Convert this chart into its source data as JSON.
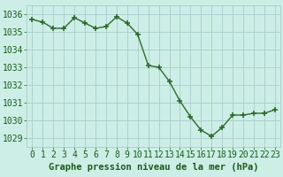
{
  "x": [
    0,
    1,
    2,
    3,
    4,
    5,
    6,
    7,
    8,
    9,
    10,
    11,
    12,
    13,
    14,
    15,
    16,
    17,
    18,
    19,
    20,
    21,
    22,
    23
  ],
  "y": [
    1035.7,
    1035.55,
    1035.2,
    1035.2,
    1035.8,
    1035.5,
    1035.2,
    1035.3,
    1035.85,
    1035.5,
    1034.85,
    1033.1,
    1033.0,
    1032.2,
    1031.1,
    1030.2,
    1029.45,
    1029.1,
    1029.6,
    1030.3,
    1030.3,
    1030.4,
    1030.4,
    1030.6
  ],
  "line_color": "#2d6a2d",
  "marker_color": "#2d6a2d",
  "bg_color": "#cceee6",
  "grid_color": "#aacccc",
  "xlabel": "Graphe pression niveau de la mer (hPa)",
  "xlabel_color": "#1a5c1a",
  "ylabel_ticks": [
    1029,
    1030,
    1031,
    1032,
    1033,
    1034,
    1035,
    1036
  ],
  "xlim": [
    -0.5,
    23.5
  ],
  "ylim": [
    1028.5,
    1036.5
  ],
  "tick_label_color": "#1a5c1a",
  "xlabel_fontsize": 7.5,
  "tick_fontsize": 7
}
